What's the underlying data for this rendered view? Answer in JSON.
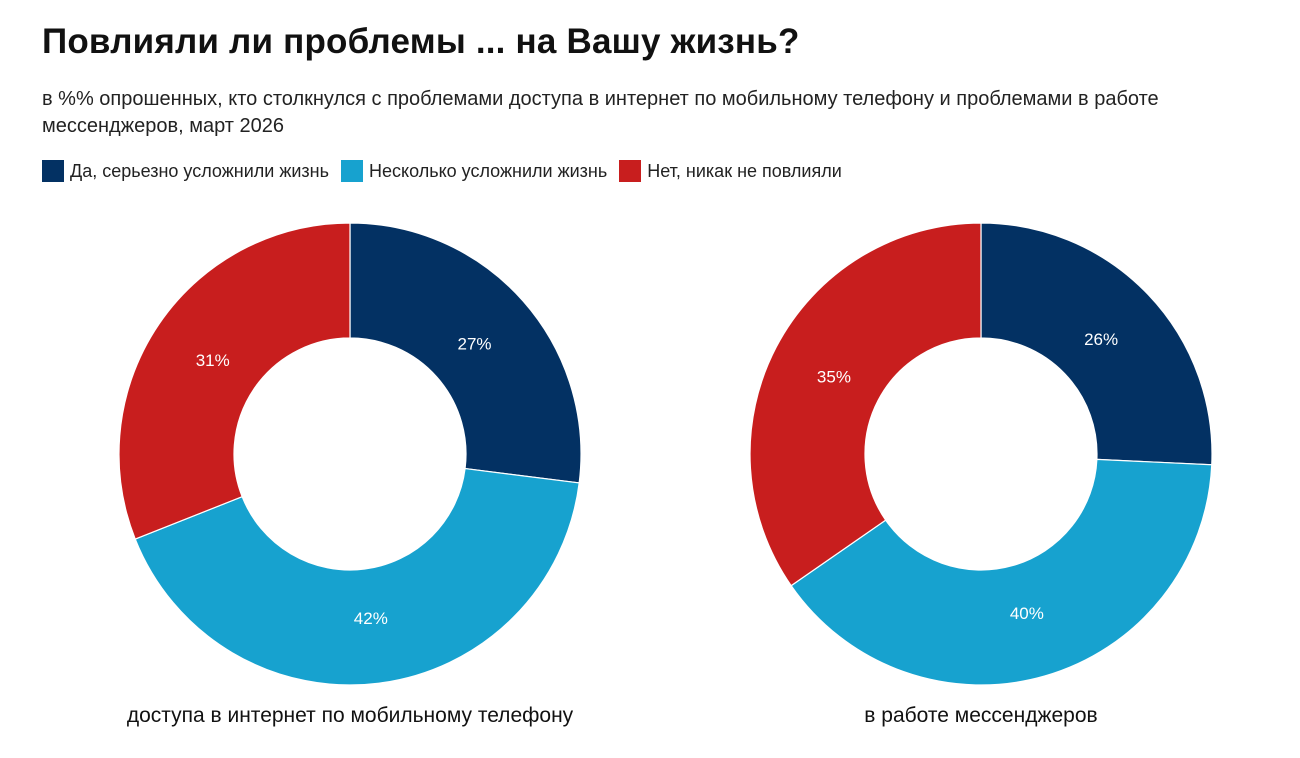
{
  "title": "Повлияли ли проблемы ... на Вашу жизнь?",
  "subtitle": "в %% опрошенных, кто столкнулся с проблемами доступа в интернет по мобильному телефону и проблемами в работе мессенджеров, март 2026",
  "legend": [
    {
      "label": "Да, серьезно усложнили жизнь",
      "color": "#033163"
    },
    {
      "label": "Несколько усложнили жизнь",
      "color": "#17a2cf"
    },
    {
      "label": "Нет, никак не повлияли",
      "color": "#c81e1e"
    }
  ],
  "chart_data": [
    {
      "type": "pie",
      "donut": true,
      "title": "доступа в интернет по мобильному телефону",
      "categories": [
        "Да, серьезно усложнили жизнь",
        "Несколько усложнили жизнь",
        "Нет, никак не повлияли"
      ],
      "values": [
        27,
        42,
        31
      ],
      "labels": [
        "27%",
        "42%",
        "31%"
      ],
      "colors": [
        "#033163",
        "#17a2cf",
        "#c81e1e"
      ]
    },
    {
      "type": "pie",
      "donut": true,
      "title": "в работе мессенджеров",
      "categories": [
        "Да, серьезно усложнили жизнь",
        "Несколько усложнили жизнь",
        "Нет, никак не повлияли"
      ],
      "values": [
        26,
        40,
        35
      ],
      "labels": [
        "26%",
        "40%",
        "35%"
      ],
      "colors": [
        "#033163",
        "#17a2cf",
        "#c81e1e"
      ]
    }
  ]
}
